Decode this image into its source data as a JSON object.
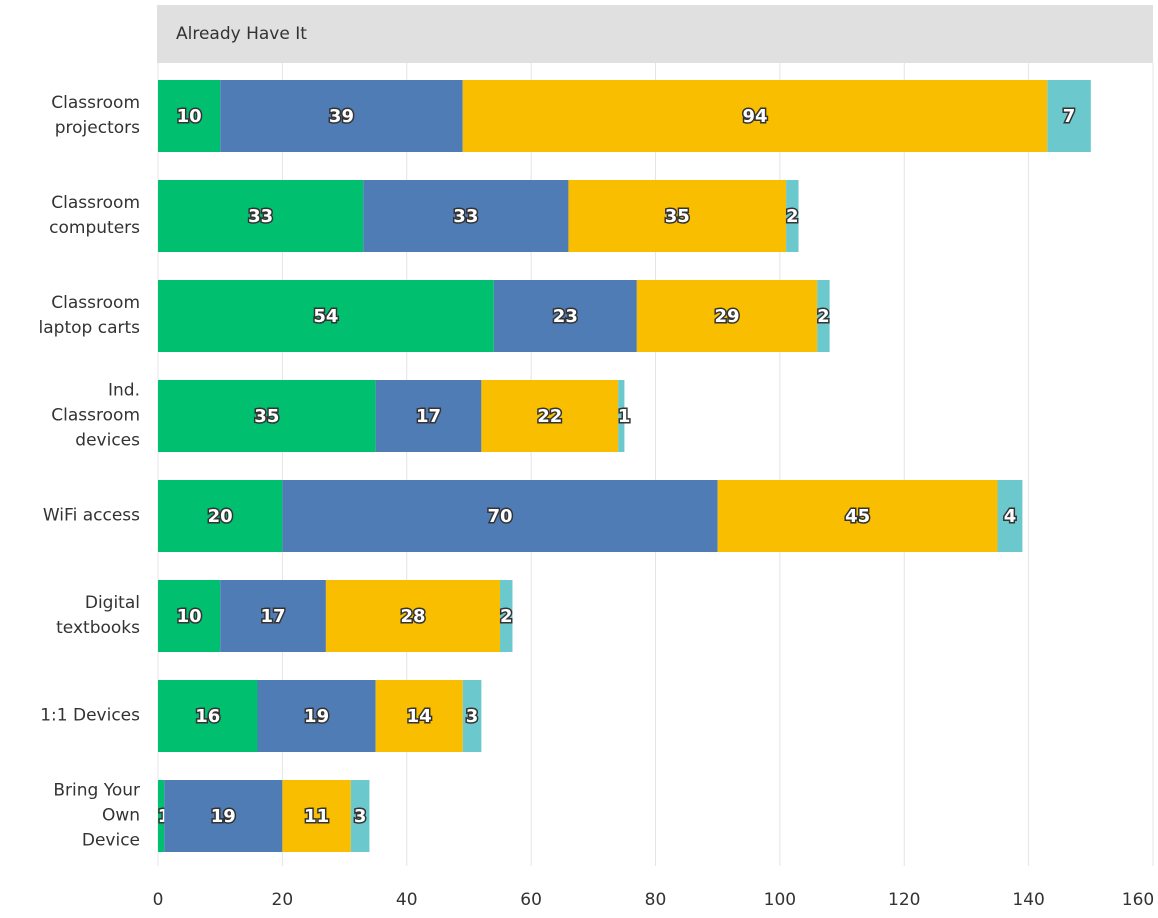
{
  "chart_data": {
    "type": "stacked-bar-horizontal",
    "title": "Already Have It",
    "categories": [
      "Classroom\nprojectors",
      "Classroom\ncomputers",
      "Classroom\nlaptop carts",
      "Ind.\nClassroom\ndevices",
      "WiFi access",
      "Digital\ntextbooks",
      "1:1 Devices",
      "Bring Your\nOwn\nDevice"
    ],
    "series": [
      {
        "color": "#00bf6f",
        "values": [
          10,
          33,
          54,
          35,
          20,
          10,
          16,
          1
        ]
      },
      {
        "color": "#507cb6",
        "values": [
          39,
          33,
          23,
          17,
          70,
          17,
          19,
          19
        ]
      },
      {
        "color": "#f9be00",
        "values": [
          94,
          35,
          29,
          22,
          45,
          28,
          14,
          11
        ]
      },
      {
        "color": "#6bc8cd",
        "values": [
          7,
          2,
          2,
          1,
          4,
          2,
          3,
          3
        ]
      }
    ],
    "xlim": [
      0,
      160
    ],
    "xticks": [
      0,
      20,
      40,
      60,
      80,
      100,
      120,
      140,
      160
    ],
    "grid": true
  }
}
